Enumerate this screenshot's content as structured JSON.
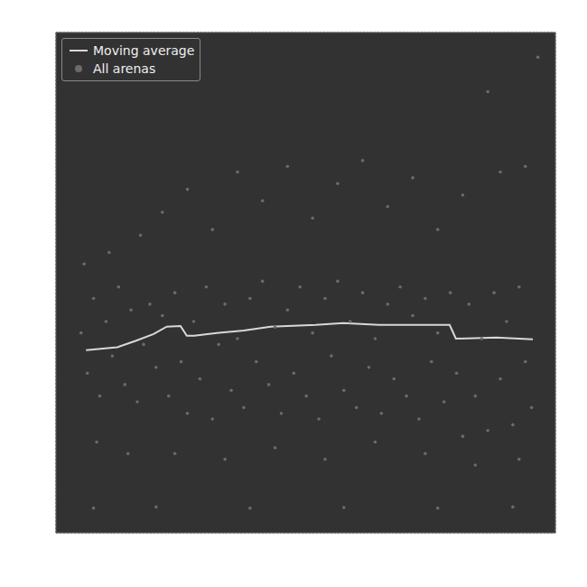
{
  "chart_data": {
    "type": "scatter",
    "tick_labels": false,
    "grid": true,
    "legend": "upper left",
    "xlim": [
      0.9,
      8.88
    ],
    "xticks": [
      1,
      2,
      3,
      4,
      5,
      6,
      7,
      8
    ],
    "ylim": [
      -0.38,
      8.33
    ],
    "yticks": [
      0,
      1,
      2,
      3,
      4,
      5,
      6,
      7,
      8
    ],
    "series": [
      {
        "name": "Moving average",
        "type": "line",
        "color": "#d8d8d8",
        "marker": "none",
        "line_style": "solid",
        "x": [
          1.38,
          1.88,
          2.17,
          2.46,
          2.67,
          2.89,
          2.99,
          3.11,
          3.47,
          3.9,
          4.33,
          5.05,
          5.49,
          6.06,
          6.64,
          7.19,
          7.29,
          7.94,
          8.52
        ],
        "values": [
          2.8,
          2.85,
          2.96,
          3.08,
          3.21,
          3.22,
          3.05,
          3.05,
          3.1,
          3.14,
          3.21,
          3.24,
          3.27,
          3.24,
          3.24,
          3.24,
          3.0,
          3.02,
          2.99
        ]
      },
      {
        "name": "All arenas",
        "type": "scatter",
        "color": "#6b6b6b",
        "marker": "circle",
        "x": [
          1.3,
          1.4,
          1.5,
          1.6,
          1.7,
          1.8,
          1.9,
          2.0,
          2.1,
          2.2,
          2.3,
          2.4,
          1.35,
          1.55,
          1.75,
          2.05,
          2.25,
          2.5,
          2.6,
          2.7,
          2.8,
          2.9,
          3.0,
          3.1,
          3.2,
          3.3,
          3.4,
          3.5,
          3.6,
          3.7,
          3.8,
          3.9,
          4.0,
          4.1,
          4.2,
          4.3,
          4.4,
          4.5,
          4.6,
          4.7,
          4.8,
          4.9,
          5.0,
          5.1,
          5.2,
          5.3,
          5.4,
          5.5,
          5.6,
          5.7,
          5.8,
          5.9,
          6.0,
          6.1,
          6.2,
          6.3,
          6.4,
          6.5,
          6.6,
          6.7,
          6.8,
          6.9,
          7.0,
          7.1,
          7.2,
          7.3,
          7.4,
          7.5,
          7.6,
          7.7,
          7.8,
          7.9,
          8.0,
          8.1,
          8.2,
          8.3,
          8.4,
          8.5,
          2.6,
          3.0,
          3.4,
          3.8,
          4.2,
          4.6,
          5.0,
          5.4,
          5.8,
          6.2,
          6.6,
          7.0,
          7.4,
          8.0,
          8.4,
          2.8,
          3.6,
          4.4,
          5.2,
          6.0,
          6.8,
          7.6,
          8.3,
          1.5,
          2.5,
          4.0,
          5.5,
          7.0,
          8.2,
          8.6,
          7.8
        ],
        "values": [
          3.1,
          2.4,
          3.7,
          2.0,
          3.3,
          2.7,
          3.9,
          2.2,
          3.5,
          1.9,
          2.9,
          3.6,
          4.3,
          1.2,
          4.5,
          1.0,
          4.8,
          2.5,
          3.4,
          2.0,
          3.8,
          2.6,
          1.7,
          3.3,
          2.3,
          3.9,
          1.6,
          2.9,
          3.6,
          2.1,
          3.0,
          1.8,
          3.7,
          2.6,
          4.0,
          2.2,
          3.2,
          1.7,
          3.5,
          2.4,
          3.9,
          2.0,
          3.1,
          1.6,
          3.7,
          2.7,
          4.0,
          2.1,
          3.3,
          1.8,
          3.8,
          2.5,
          3.0,
          1.7,
          3.6,
          2.3,
          3.9,
          2.0,
          3.4,
          1.6,
          3.7,
          2.6,
          3.1,
          1.9,
          3.8,
          2.4,
          1.3,
          3.6,
          2.0,
          3.0,
          1.4,
          3.8,
          2.3,
          3.3,
          1.5,
          3.9,
          2.6,
          1.8,
          5.2,
          5.6,
          4.9,
          5.9,
          5.4,
          6.0,
          5.1,
          5.7,
          6.1,
          5.3,
          5.8,
          4.9,
          5.5,
          5.9,
          6.0,
          1.0,
          0.9,
          1.1,
          0.9,
          1.2,
          1.0,
          0.8,
          0.9,
          0.05,
          0.07,
          0.05,
          0.06,
          0.05,
          0.07,
          7.9,
          7.3
        ]
      }
    ]
  }
}
